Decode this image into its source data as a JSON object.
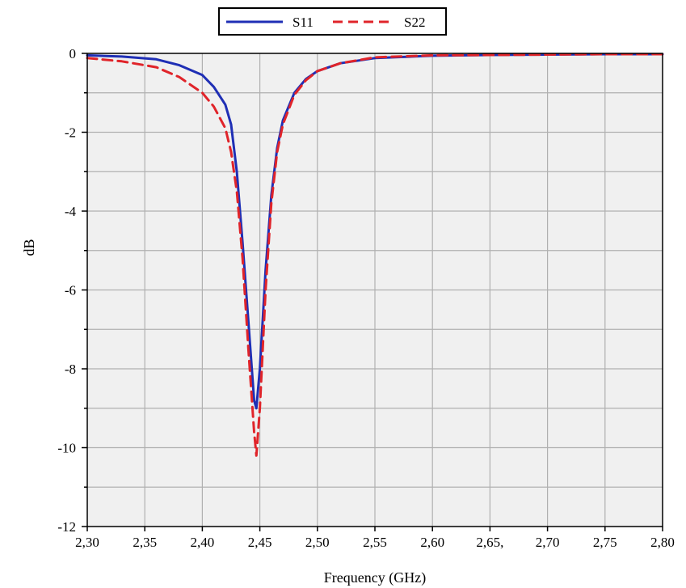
{
  "chart_data": {
    "type": "line",
    "title": "",
    "xlabel": "Frequency (GHz)",
    "ylabel": "dB",
    "xlim": [
      2.3,
      2.8
    ],
    "ylim": [
      -12,
      0
    ],
    "x_tick_values": [
      2.3,
      2.35,
      2.4,
      2.45,
      2.5,
      2.55,
      2.6,
      2.65,
      2.7,
      2.75,
      2.8
    ],
    "x_tick_labels": [
      "2,30",
      "2,35",
      "2,40",
      "2,45",
      "2,50",
      "2,55",
      "2,60",
      "2,65,",
      "2,70",
      "2,75",
      "2,80"
    ],
    "y_tick_values": [
      0,
      -2,
      -4,
      -6,
      -8,
      -10,
      -12
    ],
    "y_tick_labels": [
      "0",
      "-2",
      "-4",
      "-6",
      "-8",
      "-10",
      "-12"
    ],
    "grid": true,
    "legend_position": "top-center",
    "series": [
      {
        "name": "S11",
        "color": "#1f2fb5",
        "style": "solid",
        "x": [
          2.3,
          2.33,
          2.36,
          2.38,
          2.4,
          2.41,
          2.42,
          2.425,
          2.43,
          2.435,
          2.44,
          2.445,
          2.447,
          2.45,
          2.455,
          2.46,
          2.465,
          2.47,
          2.48,
          2.49,
          2.5,
          2.52,
          2.55,
          2.6,
          2.65,
          2.7,
          2.75,
          2.8
        ],
        "y": [
          -0.05,
          -0.08,
          -0.15,
          -0.3,
          -0.55,
          -0.85,
          -1.3,
          -1.8,
          -3.0,
          -4.8,
          -6.8,
          -8.8,
          -9.0,
          -8.0,
          -5.5,
          -3.6,
          -2.4,
          -1.7,
          -1.0,
          -0.65,
          -0.45,
          -0.25,
          -0.12,
          -0.06,
          -0.04,
          -0.03,
          -0.02,
          -0.02
        ]
      },
      {
        "name": "S22",
        "color": "#e0242a",
        "style": "dashed",
        "x": [
          2.3,
          2.33,
          2.36,
          2.38,
          2.4,
          2.41,
          2.42,
          2.425,
          2.43,
          2.435,
          2.44,
          2.445,
          2.447,
          2.45,
          2.455,
          2.46,
          2.465,
          2.47,
          2.48,
          2.49,
          2.5,
          2.52,
          2.55,
          2.6,
          2.65,
          2.7,
          2.75,
          2.8
        ],
        "y": [
          -0.12,
          -0.2,
          -0.35,
          -0.6,
          -1.0,
          -1.35,
          -1.9,
          -2.5,
          -3.5,
          -5.2,
          -7.5,
          -9.6,
          -10.2,
          -9.0,
          -6.0,
          -3.8,
          -2.5,
          -1.8,
          -1.05,
          -0.68,
          -0.45,
          -0.25,
          -0.1,
          -0.05,
          -0.04,
          -0.03,
          -0.02,
          -0.02
        ]
      }
    ]
  }
}
